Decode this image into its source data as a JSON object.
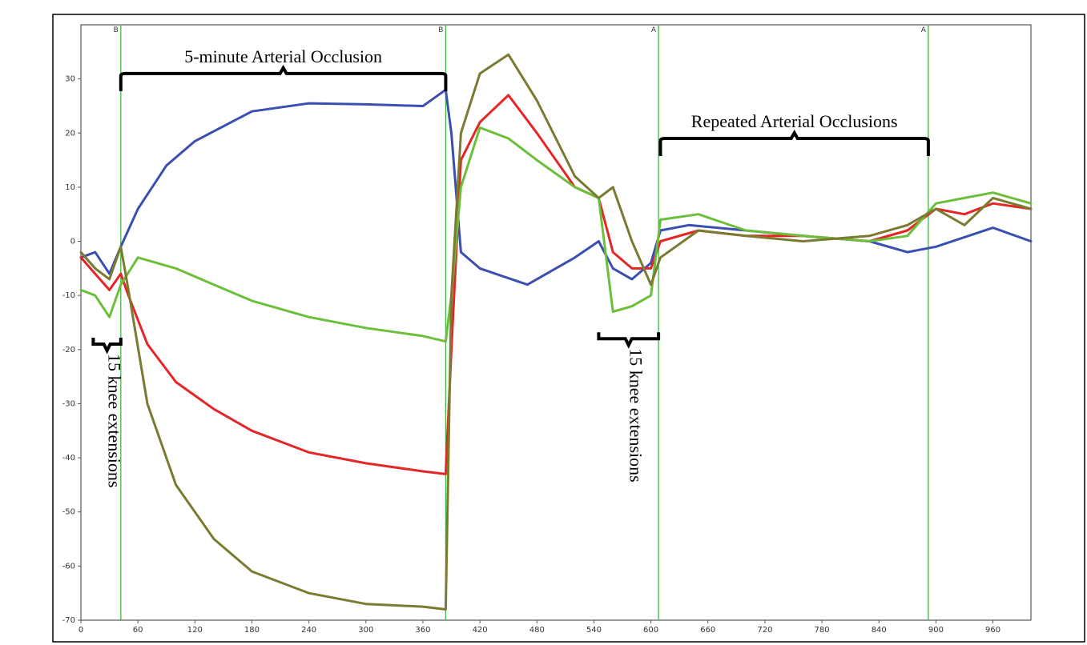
{
  "chart_data": {
    "type": "line",
    "title": "",
    "xlabel": "",
    "ylabel": "",
    "xlim": [
      0,
      1000
    ],
    "ylim": [
      -70,
      40
    ],
    "x_ticks": [
      0,
      60,
      120,
      180,
      240,
      300,
      360,
      420,
      480,
      540,
      600,
      660,
      720,
      780,
      840,
      900,
      960
    ],
    "y_ticks": [
      30,
      20,
      10,
      0,
      -10,
      -20,
      -30,
      -40,
      -50,
      -60,
      -70
    ],
    "grid": false,
    "legend": "none",
    "event_markers": [
      {
        "x": 42,
        "label": "B"
      },
      {
        "x": 384,
        "label": "B"
      },
      {
        "x": 608,
        "label": "A"
      },
      {
        "x": 892,
        "label": "A"
      }
    ],
    "annotations": [
      {
        "text": "5-minute Arterial Occlusion",
        "x_start": 42,
        "x_end": 384,
        "y": 31,
        "orientation": "horizontal"
      },
      {
        "text": "Repeated Arterial Occlusions",
        "x_start": 610,
        "x_end": 892,
        "y": 19,
        "orientation": "horizontal"
      },
      {
        "text": "15 knee  extensions",
        "x_start": 13,
        "x_end": 42,
        "y": -19,
        "orientation": "vertical"
      },
      {
        "text": "15 knee  extensions",
        "x_start": 545,
        "x_end": 608,
        "y": -18,
        "orientation": "vertical"
      }
    ],
    "series": [
      {
        "color": "#3a4fb0",
        "x": [
          0,
          15,
          30,
          42,
          60,
          90,
          120,
          180,
          240,
          300,
          360,
          384,
          390,
          400,
          420,
          470,
          520,
          545,
          560,
          580,
          600,
          610,
          640,
          700,
          760,
          830,
          870,
          900,
          960,
          1000
        ],
        "y": [
          -3,
          -2,
          -6,
          -1,
          6,
          14,
          18.5,
          24,
          25.5,
          25.3,
          25,
          28,
          20,
          -2,
          -5,
          -8,
          -3,
          0,
          -5,
          -7,
          -4,
          2,
          3,
          2,
          1,
          0,
          -2,
          -1,
          2.5,
          0
        ]
      },
      {
        "color": "#e52626",
        "x": [
          0,
          15,
          30,
          42,
          50,
          70,
          100,
          140,
          180,
          240,
          300,
          360,
          384,
          390,
          400,
          420,
          450,
          480,
          520,
          545,
          560,
          580,
          600,
          610,
          650,
          700,
          760,
          830,
          870,
          900,
          930,
          960,
          1000
        ],
        "y": [
          -3,
          -6,
          -9,
          -6,
          -10,
          -19,
          -26,
          -31,
          -35,
          -39,
          -41,
          -42.5,
          -43,
          -20,
          15,
          22,
          27,
          20,
          10,
          8,
          -2,
          -5,
          -5,
          0,
          2,
          1,
          1,
          0,
          2,
          6,
          5,
          7,
          6
        ]
      },
      {
        "color": "#6bbf3a",
        "x": [
          0,
          15,
          30,
          42,
          60,
          100,
          140,
          180,
          240,
          300,
          360,
          384,
          390,
          400,
          420,
          450,
          480,
          520,
          545,
          560,
          580,
          600,
          610,
          650,
          700,
          760,
          830,
          870,
          900,
          930,
          960,
          1000
        ],
        "y": [
          -9,
          -10,
          -14,
          -8,
          -3,
          -5,
          -8,
          -11,
          -14,
          -16,
          -17.5,
          -18.5,
          -10,
          10,
          21,
          19,
          15,
          10,
          8,
          -13,
          -12,
          -10,
          4,
          5,
          2,
          1,
          0,
          1,
          7,
          8,
          9,
          7
        ]
      },
      {
        "color": "#7a7a30",
        "x": [
          0,
          15,
          30,
          42,
          50,
          70,
          100,
          140,
          180,
          240,
          300,
          360,
          384,
          390,
          400,
          420,
          450,
          480,
          520,
          545,
          560,
          580,
          600,
          610,
          650,
          700,
          760,
          830,
          870,
          900,
          930,
          960,
          1000
        ],
        "y": [
          -2,
          -5,
          -7,
          -1,
          -9,
          -30,
          -45,
          -55,
          -61,
          -65,
          -67,
          -67.5,
          -68,
          -10,
          20,
          31,
          34.5,
          26,
          12,
          8,
          10,
          0,
          -8,
          -3,
          2,
          1,
          0,
          1,
          3,
          6,
          3,
          8,
          6
        ]
      }
    ]
  }
}
